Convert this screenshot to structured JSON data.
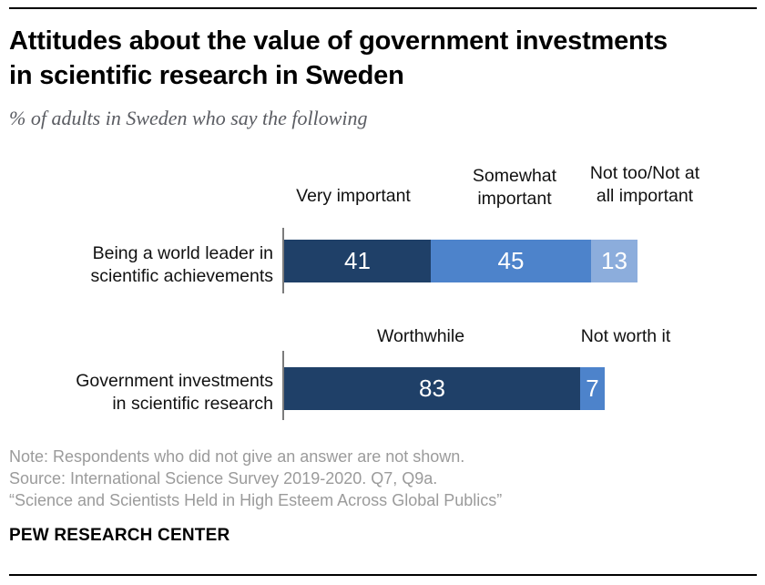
{
  "header": {
    "title": "Attitudes about the value of government investments\nin scientific research in Sweden",
    "subtitle": "% of adults in Sweden who say the following"
  },
  "chart_data": {
    "type": "bar",
    "orientation": "horizontal",
    "stacked": true,
    "unit": "%",
    "axis_range": [
      0,
      100
    ],
    "rows": [
      {
        "category": "Being a world leader in\nscientific achievements",
        "segments": [
          {
            "label": "Very important",
            "value": 41,
            "color": "#1f4068"
          },
          {
            "label": "Somewhat\nimportant",
            "value": 45,
            "color": "#4d83cb"
          },
          {
            "label": "Not too/Not at\nall important",
            "value": 13,
            "color": "#8caddc"
          }
        ]
      },
      {
        "category": "Government investments\nin scientific research",
        "segments": [
          {
            "label": "Worthwhile",
            "value": 83,
            "color": "#1f4068"
          },
          {
            "label": "Not worth it",
            "value": 7,
            "color": "#4d83cb"
          }
        ]
      }
    ]
  },
  "footer": {
    "note": "Note: Respondents who did not give an answer are not shown.",
    "source": "Source: International Science Survey 2019-2020. Q7, Q9a.",
    "report_title": "“Science and Scientists Held in High Esteem Across Global Publics”",
    "brand": "PEW RESEARCH CENTER"
  }
}
